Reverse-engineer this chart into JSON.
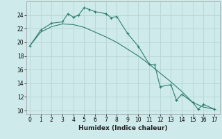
{
  "xlabel": "Humidex (Indice chaleur)",
  "background_color": "#ceeaea",
  "grid_color": "#b8d8d8",
  "line_color": "#2e7d6e",
  "x_line1": [
    0,
    1,
    2,
    3,
    3.5,
    4,
    4.5,
    5,
    5.5,
    6,
    7,
    7.5,
    8,
    9,
    10,
    11,
    11.5,
    12,
    13,
    13.5,
    14,
    15,
    15.5,
    16,
    17
  ],
  "y_line1": [
    19.5,
    21.8,
    22.8,
    23.0,
    24.2,
    23.7,
    24.0,
    25.1,
    24.8,
    24.5,
    24.2,
    23.6,
    23.8,
    21.3,
    19.4,
    16.8,
    16.7,
    13.5,
    13.8,
    11.5,
    12.4,
    11.2,
    10.2,
    10.9,
    10.2
  ],
  "x_line2": [
    0,
    1,
    2,
    3,
    4,
    5,
    6,
    7,
    8,
    9,
    10,
    11,
    12,
    13,
    14,
    15,
    16,
    17
  ],
  "y_line2": [
    19.5,
    21.5,
    22.3,
    22.7,
    22.6,
    22.2,
    21.5,
    20.8,
    20.0,
    19.0,
    18.0,
    16.8,
    15.5,
    14.2,
    12.8,
    11.2,
    10.5,
    10.2
  ],
  "xlim": [
    -0.3,
    17.5
  ],
  "ylim": [
    9.5,
    26.0
  ],
  "yticks": [
    10,
    12,
    14,
    16,
    18,
    20,
    22,
    24
  ],
  "xticks": [
    0,
    1,
    2,
    3,
    4,
    5,
    6,
    7,
    8,
    9,
    10,
    11,
    12,
    13,
    14,
    15,
    16,
    17
  ],
  "tick_fontsize": 5.5,
  "xlabel_fontsize": 6.5
}
